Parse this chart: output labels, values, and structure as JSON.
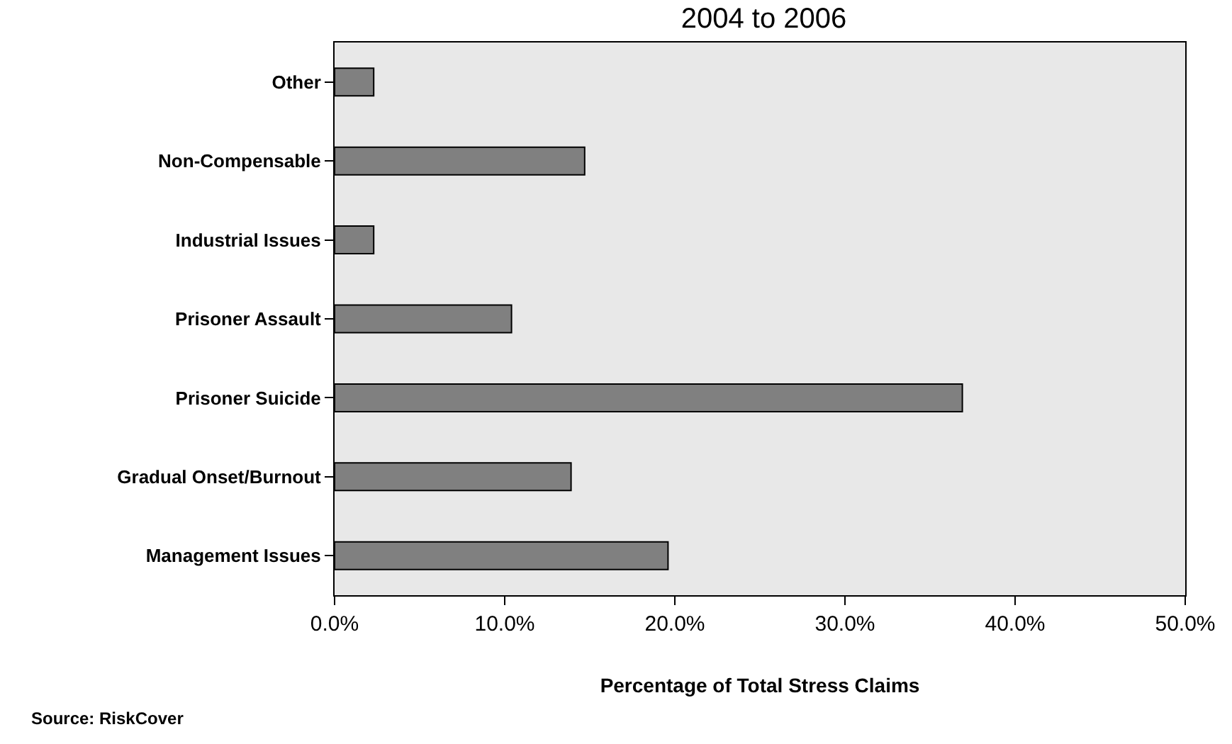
{
  "chart_data": {
    "type": "bar",
    "orientation": "horizontal",
    "title": "2004 to 2006",
    "categories": [
      "Other",
      "Non-Compensable",
      "Industrial Issues",
      "Prisoner Assault",
      "Prisoner Suicide",
      "Gradual Onset/Burnout",
      "Management Issues"
    ],
    "values": [
      2.3,
      14.7,
      2.3,
      10.4,
      36.9,
      13.9,
      19.6
    ],
    "color": "#808080",
    "xlim": [
      0,
      50
    ],
    "xticks": [
      {
        "value": 0,
        "label": "0.0%"
      },
      {
        "value": 10,
        "label": "10.0%"
      },
      {
        "value": 20,
        "label": "20.0%"
      },
      {
        "value": 30,
        "label": "30.0%"
      },
      {
        "value": 40,
        "label": "40.0%"
      },
      {
        "value": 50,
        "label": "50.0%"
      }
    ],
    "xlabel": "Percentage of Total Stress Claims",
    "annotations": [
      "Source: RiskCover"
    ],
    "grid": false
  }
}
